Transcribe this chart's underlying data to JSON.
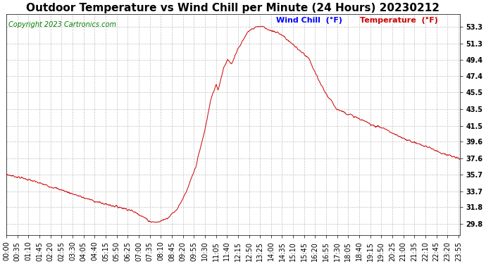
{
  "title": "Outdoor Temperature vs Wind Chill per Minute (24 Hours) 20230212",
  "copyright": "Copyright 2023 Cartronics.com",
  "legend_wind_chill": "Wind Chill  (°F)",
  "legend_temperature": "Temperature  (°F)",
  "wind_chill_color": "#0000ff",
  "temperature_color": "#cc0000",
  "line_color": "#cc0000",
  "background_color": "#ffffff",
  "grid_color": "#bbbbbb",
  "yticks": [
    29.8,
    31.8,
    33.7,
    35.7,
    37.6,
    39.6,
    41.5,
    43.5,
    45.5,
    47.4,
    49.4,
    51.3,
    53.3
  ],
  "ylim": [
    28.5,
    54.8
  ],
  "title_fontsize": 11,
  "axis_fontsize": 7,
  "copyright_fontsize": 7,
  "keypoints_hours": [
    0.0,
    1.0,
    2.0,
    3.0,
    4.0,
    5.0,
    6.0,
    6.5,
    7.0,
    7.6,
    8.0,
    8.5,
    9.0,
    9.5,
    10.0,
    10.5,
    10.8,
    11.1,
    11.2,
    11.5,
    11.7,
    11.9,
    12.2,
    12.8,
    13.2,
    13.5,
    13.7,
    14.0,
    14.5,
    15.0,
    15.5,
    16.0,
    16.5,
    17.0,
    17.5,
    18.0,
    18.5,
    19.0,
    19.5,
    20.0,
    20.5,
    21.0,
    21.5,
    22.0,
    22.5,
    23.0,
    23.5,
    23.92
  ],
  "keypoints_temps": [
    35.7,
    35.2,
    34.5,
    33.8,
    33.0,
    32.3,
    31.8,
    31.5,
    31.0,
    30.1,
    30.0,
    30.5,
    31.5,
    33.5,
    36.5,
    41.0,
    44.5,
    46.5,
    45.8,
    48.5,
    49.4,
    48.8,
    50.5,
    52.8,
    53.3,
    53.4,
    53.2,
    52.8,
    52.5,
    51.5,
    50.5,
    49.5,
    47.0,
    45.0,
    43.5,
    43.0,
    42.5,
    42.0,
    41.5,
    41.2,
    40.5,
    40.0,
    39.6,
    39.2,
    38.8,
    38.3,
    37.9,
    37.6
  ]
}
